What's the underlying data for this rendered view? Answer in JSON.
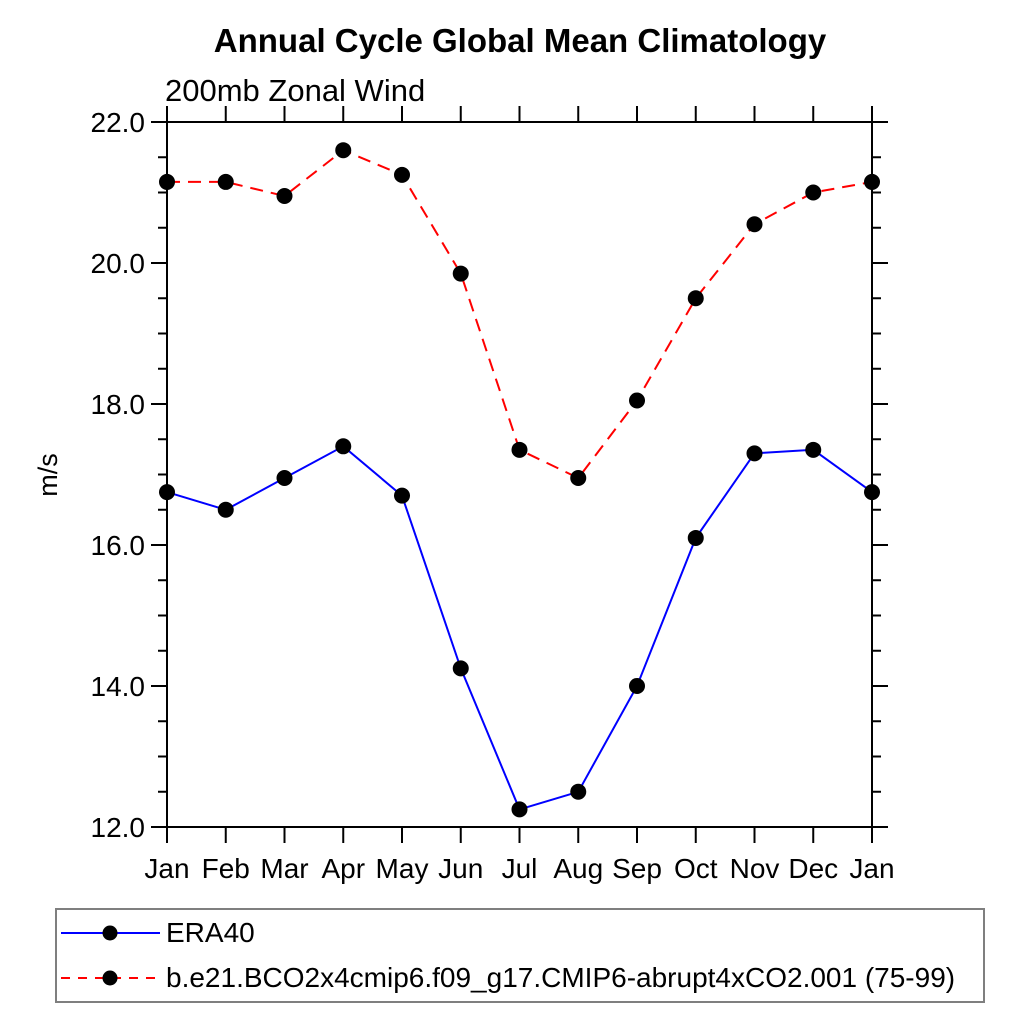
{
  "chart_data": {
    "type": "line",
    "title": "Annual Cycle Global Mean Climatology",
    "subtitle": "200mb Zonal Wind",
    "ylabel": "m/s",
    "xlabel": "",
    "categories": [
      "Jan",
      "Feb",
      "Mar",
      "Apr",
      "May",
      "Jun",
      "Jul",
      "Aug",
      "Sep",
      "Oct",
      "Nov",
      "Dec",
      "Jan"
    ],
    "ylim": [
      12.0,
      22.0
    ],
    "ytick_step": 2.0,
    "ytick_minor_step": 0.5,
    "ytick_decimals": 1,
    "grid": "off",
    "legend_position": "bottom-outside-boxed",
    "marker": {
      "shape": "circle",
      "color": "#000000"
    },
    "series": [
      {
        "name": "ERA40",
        "color": "#0000ff",
        "style": "solid",
        "values": [
          16.75,
          16.5,
          16.95,
          17.4,
          16.7,
          14.25,
          12.25,
          12.5,
          14.0,
          16.1,
          17.3,
          17.35,
          16.75
        ]
      },
      {
        "name": "b.e21.BCO2x4cmip6.f09_g17.CMIP6-abrupt4xCO2.001 (75-99)",
        "color": "#ff0000",
        "style": "dashed",
        "values": [
          21.15,
          21.15,
          20.95,
          21.6,
          21.25,
          19.85,
          17.35,
          16.95,
          18.05,
          19.5,
          20.55,
          21.0,
          21.15
        ]
      }
    ]
  }
}
